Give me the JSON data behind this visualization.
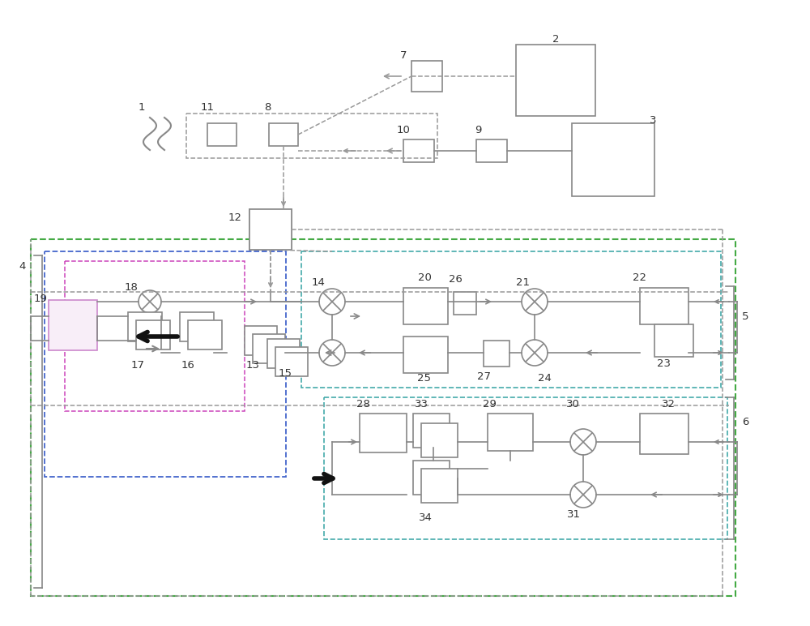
{
  "bg": "#ffffff",
  "gray": "#888888",
  "dgray": "#aaaaaa",
  "green": "#44aa44",
  "blue": "#4466cc",
  "pink": "#cc44bb",
  "teal": "#44aaaa",
  "ltgray": "#999999"
}
